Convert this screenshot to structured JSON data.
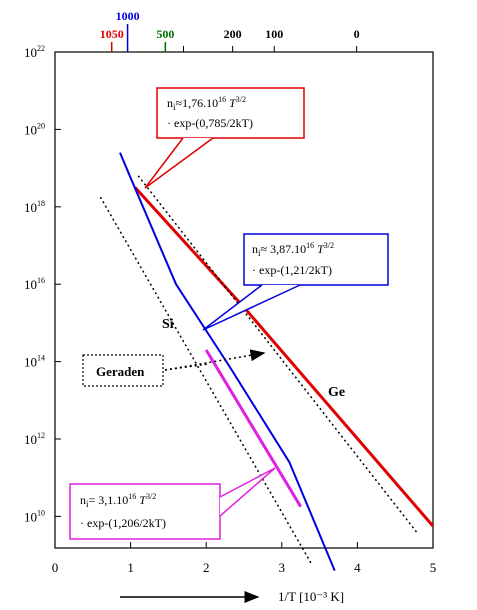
{
  "chart_data": {
    "type": "line",
    "xlabel": "1/T  [10⁻³ K]",
    "xlim": [
      0,
      5
    ],
    "x_ticks": [
      "0",
      "1",
      "2",
      "3",
      "4",
      "5"
    ],
    "ylim_log10": [
      8.6,
      22
    ],
    "y_ticks": [
      {
        "base": "10",
        "exp": "22",
        "value": 22
      },
      {
        "base": "10",
        "exp": "20",
        "value": 20
      },
      {
        "base": "10",
        "exp": "18",
        "value": 18
      },
      {
        "base": "10",
        "exp": "16",
        "value": 16
      },
      {
        "base": "10",
        "exp": "14",
        "value": 14
      },
      {
        "base": "10",
        "exp": "12",
        "value": 12
      },
      {
        "base": "10",
        "exp": "10",
        "value": 10
      }
    ],
    "top_axis_labels": [
      {
        "text": "1050",
        "x": 0.75,
        "color": "#e00000"
      },
      {
        "text": "1000",
        "x": 0.96,
        "color": "#0000e0"
      },
      {
        "text": "500",
        "x": 1.46,
        "color": "#007000"
      },
      {
        "text": "200",
        "x": 2.35,
        "color": "#000000"
      },
      {
        "text": "100",
        "x": 2.9,
        "color": "#000000"
      },
      {
        "text": "0",
        "x": 3.99,
        "color": "#000000"
      }
    ],
    "top_ticks_x": [
      0.75,
      0.96,
      1.46,
      1.7,
      2.35,
      2.9,
      3.99
    ],
    "series": [
      {
        "name": "Ge",
        "color": "#e00000",
        "style": "solid",
        "width": 3,
        "points": [
          [
            1.06,
            18.5
          ],
          [
            2.5,
            15.4
          ],
          [
            5.0,
            9.75
          ]
        ]
      },
      {
        "name": "Si",
        "color": "#0000e0",
        "style": "solid",
        "width": 2,
        "points": [
          [
            0.86,
            19.4
          ],
          [
            1.0,
            18.75
          ],
          [
            1.6,
            16.0
          ],
          [
            2.3,
            13.9
          ],
          [
            3.1,
            11.4
          ],
          [
            3.7,
            8.6
          ]
        ]
      },
      {
        "name": "",
        "color": "#e020e0",
        "style": "solid",
        "width": 3,
        "points": [
          [
            2.0,
            14.3
          ],
          [
            3.25,
            10.25
          ]
        ]
      },
      {
        "name": "",
        "color": "#000000",
        "style": "dotted",
        "width": 1.5,
        "points": [
          [
            0.6,
            18.25
          ],
          [
            3.4,
            8.75
          ]
        ]
      },
      {
        "name": "",
        "color": "#000000",
        "style": "dotted",
        "width": 1.5,
        "points": [
          [
            1.1,
            18.8
          ],
          [
            4.8,
            9.55
          ]
        ]
      }
    ],
    "series_labels": [
      {
        "text": "Si",
        "color": "#0000e0"
      },
      {
        "text": "Ge",
        "color": "#e00000"
      }
    ],
    "annotations": [
      {
        "id": "ge",
        "color": "#e00000",
        "line1_main": "n",
        "line1_sub": "i",
        "line1_rest": "≈1,76.10",
        "line1_sup": "16",
        "line1_T": " T",
        "line1_sup2": "3/2",
        "line2": "· exp-(0,785/2kT)"
      },
      {
        "id": "si",
        "color": "#0000e0",
        "line1_main": "n",
        "line1_sub": "i",
        "line1_rest": "≈ 3,87.10",
        "line1_sup": "16",
        "line1_T": " T",
        "line1_sup2": "3/2",
        "line2": "· exp-(1,21/2kT)"
      },
      {
        "id": "mag",
        "color": "#e020e0",
        "line1_main": "n",
        "line1_sub": "i",
        "line1_rest": "= 3,1.10",
        "line1_sup": "16",
        "line1_T": " T",
        "line1_sup2": "3/2",
        "line2": "· exp-(1,206/2kT)"
      }
    ],
    "geraden_label": "Geraden",
    "grid": false
  }
}
